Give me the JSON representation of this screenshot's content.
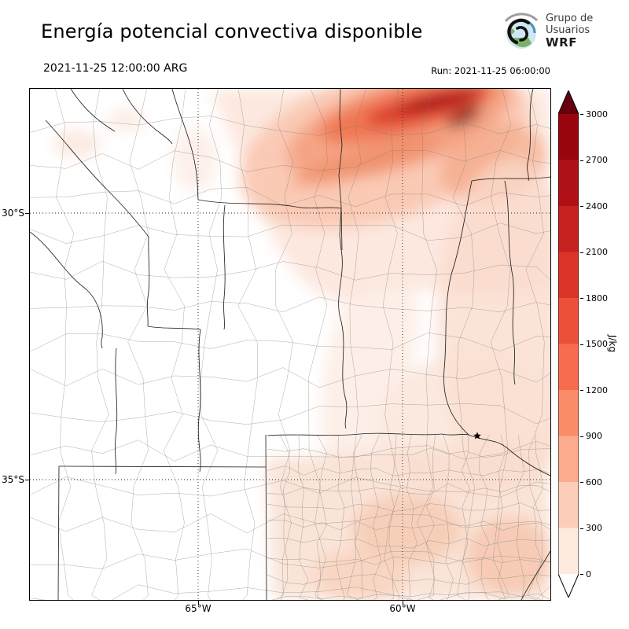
{
  "header": {
    "title": "Energía potencial convectiva disponible",
    "valid_time": "2021-11-25 12:00:00 ARG",
    "run_label": "Run: 2021-11-25 06:00:00"
  },
  "logo": {
    "line1": "Grupo de",
    "line2": "Usuarios",
    "line3": "WRF"
  },
  "map": {
    "x_tick_labels": [
      "65°W",
      "60°W"
    ],
    "y_tick_labels": [
      "30°S",
      "35°S"
    ]
  },
  "colorbar": {
    "unit_label": "J/kg",
    "tick_labels_top_to_bottom": [
      "3000",
      "2700",
      "2400",
      "2100",
      "1800",
      "1500",
      "1200",
      "900",
      "600",
      "300",
      "0"
    ],
    "colors_top_to_bottom": [
      "#67000d",
      "#99050f",
      "#af1117",
      "#c5211f",
      "#dc3429",
      "#ec5138",
      "#f76c4c",
      "#fa8c68",
      "#fcab8c",
      "#fccdb9",
      "#feeade",
      "#ffffff"
    ]
  },
  "chart_data": {
    "type": "heatmap",
    "title": "Energía potencial convectiva disponible",
    "valid_time": "2021-11-25 12:00:00 ARG",
    "run_time": "Run: 2021-11-25 06:00:00",
    "unit": "J/kg",
    "levels": [
      0,
      300,
      600,
      900,
      1200,
      1500,
      1800,
      2100,
      2400,
      2700,
      3000
    ],
    "x_ticks": [
      "65°W",
      "60°W"
    ],
    "y_ticks": [
      "30°S",
      "35°S"
    ]
  }
}
